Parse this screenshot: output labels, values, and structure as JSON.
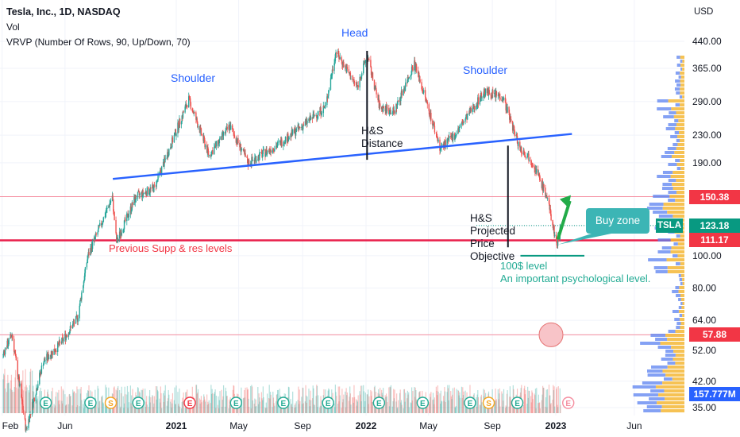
{
  "header": {
    "title": "Tesla, Inc., 1D, NASDAQ",
    "indicator1": "Vol",
    "indicator2": "VRVP (Number Of Rows, 90, Up/Down, 70)"
  },
  "annotations": {
    "head": "Head",
    "shoulder_left": "Shoulder",
    "shoulder_right": "Shoulder",
    "hs_distance_line1": "H&S",
    "hs_distance_line2": "Distance",
    "hs_projected_line1": "H&S",
    "hs_projected_line2": "Projected",
    "hs_projected_line3": "Price",
    "hs_projected_line4": "Objective",
    "prev_levels": "Previous Supp & res levels",
    "level_100_line1": "100$ level",
    "level_100_line2": "An important psychological level.",
    "buy_zone": "Buy zone"
  },
  "price_badges": {
    "level_150": "150.38",
    "tsla_label": "TSLA",
    "last_price": "123.18",
    "level_111": "111.17",
    "level_57": "57.88",
    "volume": "157.777M"
  },
  "colors": {
    "up": "#26a69a",
    "down": "#ef5350",
    "neckline": "#2962ff",
    "support": "#f23645",
    "teal": "#089981",
    "vp_up": "#f5b736",
    "vp_down": "#5b82f0"
  },
  "chart_data": {
    "type": "candlestick",
    "symbol": "TSLA",
    "interval": "1D",
    "y_scale": "log",
    "y_axis": {
      "label": "USD",
      "ticks": [
        440.0,
        365.0,
        290.0,
        230.0,
        190.0,
        150.38,
        123.18,
        111.17,
        100.0,
        80.0,
        64.0,
        57.88,
        52.0,
        42.0,
        35.0
      ],
      "tick_labels": [
        "440.00",
        "365.00",
        "290.00",
        "230.00",
        "190.00",
        "150.38",
        "123.18",
        "111.17",
        "100.00",
        "80.00",
        "64.00",
        "57.88",
        "52.00",
        "42.00",
        "35.00"
      ]
    },
    "x_axis": {
      "tick_labels": [
        "Feb",
        "Jun",
        "2021",
        "May",
        "Sep",
        "2022",
        "May",
        "Sep",
        "2023",
        "Jun"
      ],
      "tick_dates": [
        "2020-02-01",
        "2020-06-01",
        "2021-01-01",
        "2021-05-01",
        "2021-09-01",
        "2022-01-01",
        "2022-05-01",
        "2022-09-01",
        "2023-01-01",
        "2023-06-01"
      ]
    },
    "close_path": [
      [
        "2020-02-01",
        50
      ],
      [
        "2020-02-20",
        58
      ],
      [
        "2020-03-18",
        30
      ],
      [
        "2020-04-20",
        48
      ],
      [
        "2020-05-25",
        55
      ],
      [
        "2020-06-25",
        65
      ],
      [
        "2020-07-15",
        100
      ],
      [
        "2020-08-31",
        150
      ],
      [
        "2020-09-08",
        110
      ],
      [
        "2020-10-15",
        150
      ],
      [
        "2020-11-20",
        160
      ],
      [
        "2020-12-31",
        235
      ],
      [
        "2021-01-25",
        295
      ],
      [
        "2021-03-05",
        200
      ],
      [
        "2021-04-14",
        245
      ],
      [
        "2021-05-19",
        190
      ],
      [
        "2021-07-15",
        215
      ],
      [
        "2021-08-31",
        245
      ],
      [
        "2021-10-15",
        280
      ],
      [
        "2021-11-04",
        410
      ],
      [
        "2021-12-15",
        320
      ],
      [
        "2022-01-03",
        400
      ],
      [
        "2022-01-27",
        280
      ],
      [
        "2022-02-24",
        270
      ],
      [
        "2022-04-04",
        380
      ],
      [
        "2022-05-24",
        210
      ],
      [
        "2022-06-20",
        230
      ],
      [
        "2022-08-16",
        310
      ],
      [
        "2022-09-21",
        300
      ],
      [
        "2022-10-24",
        210
      ],
      [
        "2022-11-15",
        195
      ],
      [
        "2022-12-15",
        150
      ],
      [
        "2023-01-03",
        108
      ],
      [
        "2023-01-10",
        123.18
      ]
    ],
    "volume_last": "157.777M",
    "horizontal_levels": [
      150.38,
      111.17,
      57.88,
      100.0
    ],
    "neckline": {
      "from": [
        "2020-09-01",
        170
      ],
      "to": [
        "2023-02-01",
        232
      ]
    }
  }
}
